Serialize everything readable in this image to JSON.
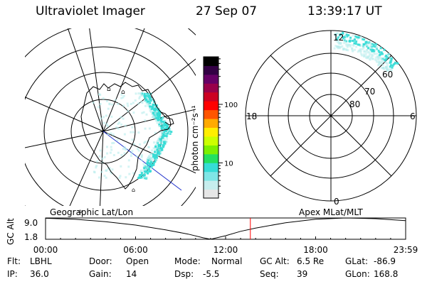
{
  "header": {
    "instrument": "Ultraviolet Imager",
    "date": "27 Sep 07",
    "time": "13:39:17 UT"
  },
  "colors": {
    "aurora": "#35dcd6",
    "aurora_light": "#b8ecec",
    "terminator_line": "#2233cc",
    "cursor_line": "#ff0000"
  },
  "colorbar": {
    "unit_label": "photon cm⁻²s⁻¹",
    "ticks": [
      {
        "value": 100,
        "label": "100"
      },
      {
        "value": 10,
        "label": "10"
      }
    ],
    "scale": "log",
    "range": [
      2.5,
      650
    ],
    "colors": [
      "#e6e6e6",
      "#c6eded",
      "#7fe6e6",
      "#35dcd6",
      "#23e060",
      "#7cf000",
      "#ccff00",
      "#ffee00",
      "#ffaa00",
      "#ff5500",
      "#ff0000",
      "#cc0022",
      "#99004a",
      "#660066",
      "#330044",
      "#000000"
    ]
  },
  "left_map": {
    "label": "Geographic Lat/Lon",
    "terrain_marks": [
      "mountain-glyph-a",
      "mountain-glyph-b",
      "mountain-glyph-c",
      "mountain-glyph-d"
    ]
  },
  "right_map": {
    "label": "Apex MLat/MLT",
    "lat_labels": [
      "60",
      "70",
      "80"
    ],
    "mlt_labels": {
      "top": "12",
      "left": "18",
      "right": "6",
      "bottom": "0"
    }
  },
  "altitude_plot": {
    "axis_title": "GC Alt",
    "y_ticks": [
      "9.0",
      "1.8"
    ],
    "x_ticks": [
      "00:00",
      "06:00",
      "12:00",
      "18:00",
      "23:59"
    ]
  },
  "chart_data": {
    "type": "line",
    "title": "",
    "xlabel": "",
    "ylabel": "GC Alt",
    "ylim": [
      1.8,
      9.0
    ],
    "xlim_hours": [
      0,
      24
    ],
    "series": [
      {
        "x": [
          0,
          2,
          4,
          6,
          8,
          9.5,
          10.5,
          11.0,
          12,
          13,
          14,
          16,
          18,
          20,
          22,
          23.98
        ],
        "values": [
          8.9,
          8.55,
          7.75,
          6.6,
          5.0,
          3.55,
          2.3,
          1.8,
          3.0,
          4.5,
          5.6,
          7.4,
          8.6,
          9.0,
          8.75,
          8.1
        ]
      }
    ],
    "current_time_hours": 13.65
  },
  "status": {
    "row1": [
      {
        "label": "Flt:",
        "value": "LBHL"
      },
      {
        "label": "Door:",
        "value": "Open"
      },
      {
        "label": "Mode:",
        "value": "Normal"
      },
      {
        "label": "GC Alt:",
        "value": "6.5 Re"
      },
      {
        "label": "GLat:",
        "value": "-86.9"
      }
    ],
    "row2": [
      {
        "label": "IP:",
        "value": "36.0"
      },
      {
        "label": "Gain:",
        "value": "14"
      },
      {
        "label": "Dsp:",
        "value": "-5.5"
      },
      {
        "label": "Seq:",
        "value": "39"
      },
      {
        "label": "GLon:",
        "value": "168.8"
      }
    ]
  }
}
